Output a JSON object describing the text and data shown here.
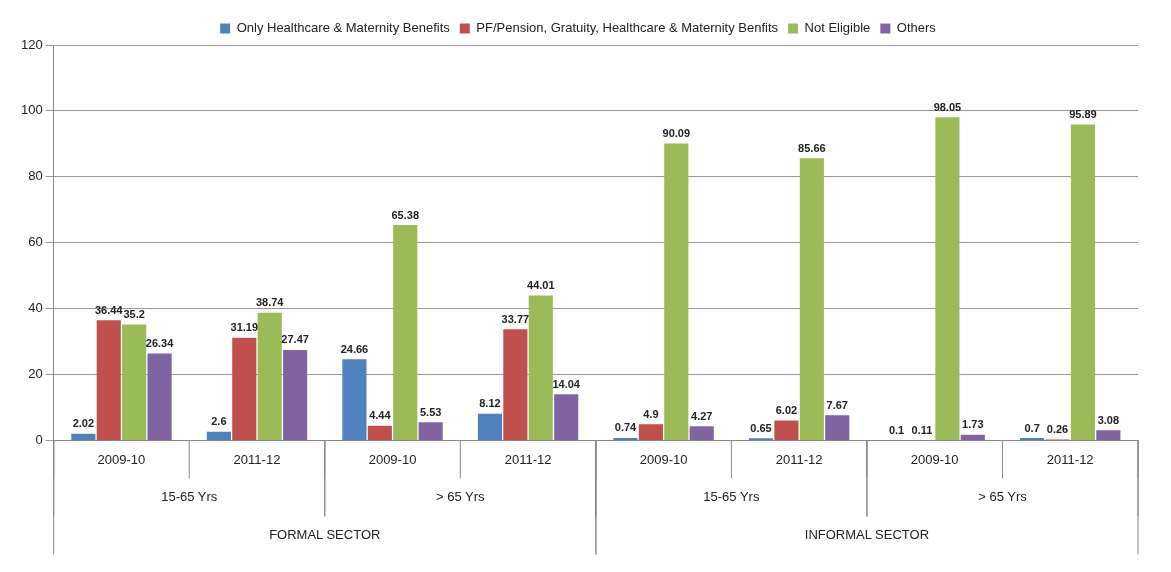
{
  "chart_data": {
    "type": "bar",
    "categories": [
      "2009-10",
      "2011-12",
      "2009-10",
      "2011-12",
      "2009-10",
      "2011-12",
      "2009-10",
      "2011-12"
    ],
    "series": [
      {
        "name": "Only Healthcare & Maternity Benefits",
        "color": "#4f81bd",
        "values": [
          2.02,
          2.6,
          24.66,
          8.12,
          0.74,
          0.65,
          0.1,
          0.7
        ]
      },
      {
        "name": "PF/Pension, Gratuity, Healthcare & Maternity Benfits",
        "color": "#c0504d",
        "values": [
          36.44,
          31.19,
          4.44,
          33.77,
          4.9,
          6.02,
          0.11,
          0.26
        ]
      },
      {
        "name": "Not Eligible",
        "color": "#9bbb59",
        "values": [
          35.2,
          38.74,
          65.38,
          44.01,
          90.09,
          85.66,
          98.05,
          95.89
        ]
      },
      {
        "name": "Others",
        "color": "#8064a2",
        "values": [
          26.34,
          27.47,
          5.53,
          14.04,
          4.27,
          7.67,
          1.73,
          3.08
        ]
      }
    ],
    "annotations": [
      "15-65 Yrs",
      "> 65 Yrs",
      "15-65 Yrs",
      "> 65 Yrs",
      "FORMAL SECTOR",
      "INFORMAL SECTOR"
    ],
    "ylim": [
      0,
      120
    ],
    "yticks": [
      0,
      20,
      40,
      60,
      80,
      100,
      120
    ],
    "grid": "y",
    "legend": "top",
    "data_labels": true
  }
}
